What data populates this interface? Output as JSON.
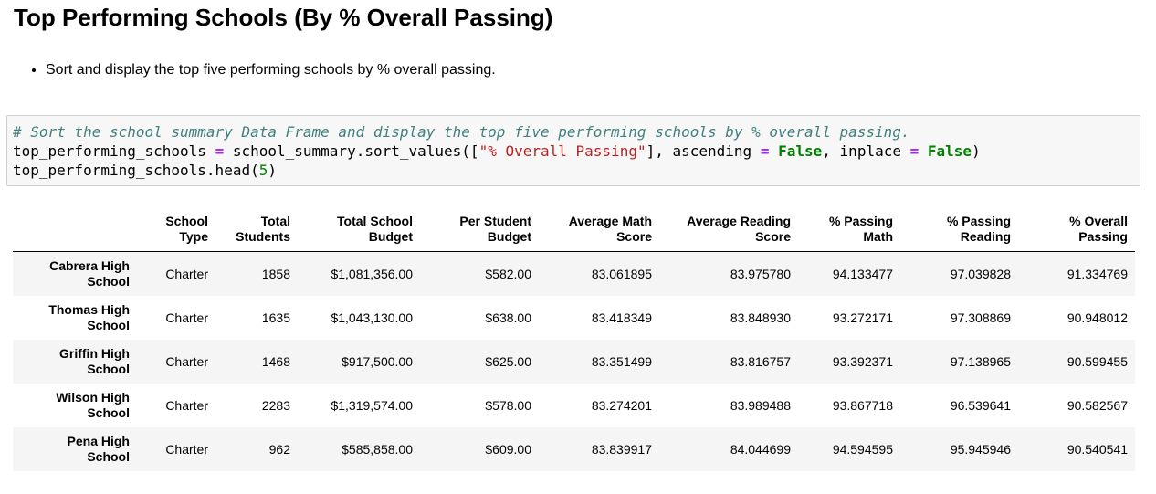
{
  "heading": "Top Performing Schools (By % Overall Passing)",
  "bullets": [
    "Sort and display the top five performing schools by % overall passing."
  ],
  "code": {
    "comment": "# Sort the school summary Data Frame and display the top five performing schools by % overall passing.",
    "line2": {
      "var": "top_performing_schools ",
      "eq": "=",
      "call": " school_summary.sort_values([",
      "str": "\"% Overall Passing\"",
      "mid": "], ascending ",
      "eq2": "=",
      "sp": " ",
      "false1": "False",
      "mid2": ", inplace ",
      "eq3": "=",
      "sp2": " ",
      "false2": "False",
      "end": ")"
    },
    "line3": {
      "call": "top_performing_schools.head(",
      "num": "5",
      "end": ")"
    }
  },
  "table": {
    "columns": [
      {
        "line1": "School",
        "line2": "Type"
      },
      {
        "line1": "Total",
        "line2": "Students"
      },
      {
        "line1": "Total School",
        "line2": "Budget"
      },
      {
        "line1": "Per Student",
        "line2": "Budget"
      },
      {
        "line1": "Average Math",
        "line2": "Score"
      },
      {
        "line1": "Average Reading",
        "line2": "Score"
      },
      {
        "line1": "% Passing",
        "line2": "Math"
      },
      {
        "line1": "% Passing",
        "line2": "Reading"
      },
      {
        "line1": "% Overall",
        "line2": "Passing"
      }
    ],
    "rows": [
      {
        "name1": "Cabrera High",
        "name2": "School",
        "cells": [
          "Charter",
          "1858",
          "$1,081,356.00",
          "$582.00",
          "83.061895",
          "83.975780",
          "94.133477",
          "97.039828",
          "91.334769"
        ]
      },
      {
        "name1": "Thomas High",
        "name2": "School",
        "cells": [
          "Charter",
          "1635",
          "$1,043,130.00",
          "$638.00",
          "83.418349",
          "83.848930",
          "93.272171",
          "97.308869",
          "90.948012"
        ]
      },
      {
        "name1": "Griffin High",
        "name2": "School",
        "cells": [
          "Charter",
          "1468",
          "$917,500.00",
          "$625.00",
          "83.351499",
          "83.816757",
          "93.392371",
          "97.138965",
          "90.599455"
        ]
      },
      {
        "name1": "Wilson High",
        "name2": "School",
        "cells": [
          "Charter",
          "2283",
          "$1,319,574.00",
          "$578.00",
          "83.274201",
          "83.989488",
          "93.867718",
          "96.539641",
          "90.582567"
        ]
      },
      {
        "name1": "Pena High",
        "name2": "School",
        "cells": [
          "Charter",
          "962",
          "$585,858.00",
          "$609.00",
          "83.839917",
          "84.044699",
          "94.594595",
          "95.945946",
          "90.540541"
        ]
      }
    ]
  }
}
